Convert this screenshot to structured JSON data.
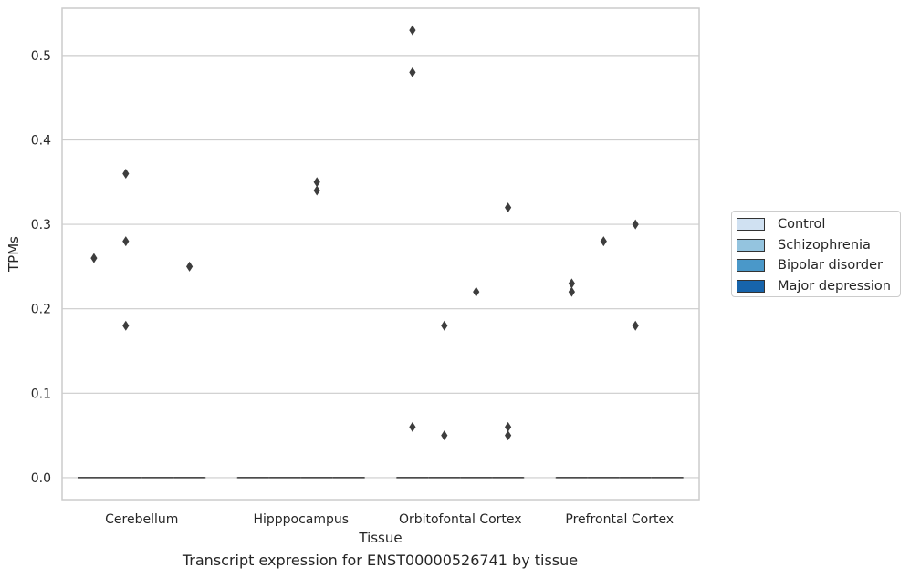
{
  "caption": "Transcript expression for ENST00000526741 by tissue",
  "chart_data": {
    "type": "box",
    "title": "",
    "xlabel": "Tissue",
    "ylabel": "TPMs",
    "categories": [
      "Cerebellum",
      "Hipppocampus",
      "Orbitofontal Cortex",
      "Prefrontal Cortex"
    ],
    "hue_series": [
      "Control",
      "Schizophrenia",
      "Bipolar disorder",
      "Major depression"
    ],
    "colors": [
      "#d0e1f2",
      "#94c4df",
      "#4a98c9",
      "#1764ab"
    ],
    "ylim": [
      -0.026,
      0.556
    ],
    "yticks": [
      0.0,
      0.1,
      0.2,
      0.3,
      0.4,
      0.5
    ],
    "ytick_labels": [
      "0.0",
      "0.1",
      "0.2",
      "0.3",
      "0.4",
      "0.5"
    ],
    "grid": true,
    "legend_position": "right",
    "boxes": [
      {
        "category": "Cerebellum",
        "series": "Control",
        "median": 0.0,
        "q1": 0.0,
        "q3": 0.0,
        "outliers": [
          0.26
        ]
      },
      {
        "category": "Cerebellum",
        "series": "Schizophrenia",
        "median": 0.0,
        "q1": 0.0,
        "q3": 0.0,
        "outliers": [
          0.36,
          0.28,
          0.18
        ]
      },
      {
        "category": "Cerebellum",
        "series": "Bipolar disorder",
        "median": 0.0,
        "q1": 0.0,
        "q3": 0.0,
        "outliers": []
      },
      {
        "category": "Cerebellum",
        "series": "Major depression",
        "median": 0.0,
        "q1": 0.0,
        "q3": 0.0,
        "outliers": [
          0.25
        ]
      },
      {
        "category": "Hipppocampus",
        "series": "Control",
        "median": 0.0,
        "q1": 0.0,
        "q3": 0.0,
        "outliers": []
      },
      {
        "category": "Hipppocampus",
        "series": "Schizophrenia",
        "median": 0.0,
        "q1": 0.0,
        "q3": 0.0,
        "outliers": []
      },
      {
        "category": "Hipppocampus",
        "series": "Bipolar disorder",
        "median": 0.0,
        "q1": 0.0,
        "q3": 0.0,
        "outliers": [
          0.35,
          0.34
        ]
      },
      {
        "category": "Hipppocampus",
        "series": "Major depression",
        "median": 0.0,
        "q1": 0.0,
        "q3": 0.0,
        "outliers": []
      },
      {
        "category": "Orbitofontal Cortex",
        "series": "Control",
        "median": 0.0,
        "q1": 0.0,
        "q3": 0.0,
        "outliers": [
          0.53,
          0.48,
          0.06
        ]
      },
      {
        "category": "Orbitofontal Cortex",
        "series": "Schizophrenia",
        "median": 0.0,
        "q1": 0.0,
        "q3": 0.0,
        "outliers": [
          0.18,
          0.05
        ]
      },
      {
        "category": "Orbitofontal Cortex",
        "series": "Bipolar disorder",
        "median": 0.0,
        "q1": 0.0,
        "q3": 0.0,
        "outliers": [
          0.22
        ]
      },
      {
        "category": "Orbitofontal Cortex",
        "series": "Major depression",
        "median": 0.0,
        "q1": 0.0,
        "q3": 0.0,
        "outliers": [
          0.32,
          0.06,
          0.05
        ]
      },
      {
        "category": "Prefrontal Cortex",
        "series": "Control",
        "median": 0.0,
        "q1": 0.0,
        "q3": 0.0,
        "outliers": [
          0.23,
          0.22
        ]
      },
      {
        "category": "Prefrontal Cortex",
        "series": "Schizophrenia",
        "median": 0.0,
        "q1": 0.0,
        "q3": 0.0,
        "outliers": [
          0.28
        ]
      },
      {
        "category": "Prefrontal Cortex",
        "series": "Bipolar disorder",
        "median": 0.0,
        "q1": 0.0,
        "q3": 0.0,
        "outliers": [
          0.3,
          0.18
        ]
      },
      {
        "category": "Prefrontal Cortex",
        "series": "Major depression",
        "median": 0.0,
        "q1": 0.0,
        "q3": 0.0,
        "outliers": []
      }
    ]
  }
}
